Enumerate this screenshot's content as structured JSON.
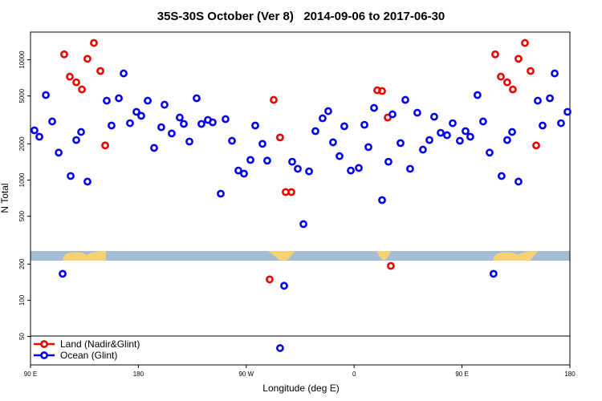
{
  "chart_data": {
    "type": "scatter",
    "title": "35S-30S October (Ver 8)   2014-09-06 to 2017-06-30",
    "x_label": "Longitude (deg E)",
    "y_label": "N Total",
    "yscale": "log",
    "xlim": [
      90,
      540
    ],
    "ylim": [
      29,
      17000
    ],
    "xticks": [
      {
        "value": 90,
        "label": "90 E"
      },
      180,
      {
        "value": 270,
        "label": "90 W"
      },
      {
        "value": 360,
        "label": "0"
      },
      {
        "value": 450,
        "label": "90 E"
      },
      {
        "value": 540,
        "label": "180"
      }
    ],
    "yticks": [
      50,
      100,
      200,
      500,
      1000,
      2000,
      5000,
      10000
    ],
    "legend": "bottomleft",
    "series": [
      {
        "name": "Land (Nadir&Glint)",
        "color": "#ee0000",
        "x": [
          118.1,
          122.8,
          128.2,
          132.9,
          137.5,
          142.9,
          148.3,
          152.3,
          289.5,
          292.9,
          298.2,
          302.9,
          307.6,
          379.3,
          383.3,
          388,
          390.6,
          477.7,
          482.4,
          487.7,
          492.4,
          497.1,
          502.5,
          507.2,
          511.9
        ],
        "values": [
          11100,
          7240,
          6500,
          5670,
          10200,
          13800,
          8070,
          1940,
          149,
          4640,
          2260,
          794,
          794,
          5580,
          5500,
          3310,
          193,
          11100,
          7240,
          6500,
          5670,
          10200,
          13800,
          8070,
          1940
        ]
      },
      {
        "name": "Ocean (Glint)",
        "color": "#0000ee",
        "x": [
          93.3,
          97.4,
          102.8,
          108.1,
          113.5,
          116.8,
          123.5,
          128.2,
          132.2,
          137.5,
          153.6,
          157.6,
          163.7,
          167.7,
          173,
          178.4,
          182.4,
          187.8,
          193.1,
          199.1,
          201.8,
          207.8,
          214.5,
          217.9,
          222.6,
          228.6,
          232.6,
          238,
          242,
          248.7,
          252.7,
          258.1,
          263.4,
          268.1,
          273.5,
          277.5,
          283.5,
          287.5,
          298.2,
          301.6,
          308.3,
          313,
          317.7,
          322.4,
          327.7,
          333.7,
          338.4,
          342.4,
          347.8,
          351.8,
          357.2,
          363.9,
          368.6,
          371.9,
          376.6,
          383.3,
          388.6,
          392,
          398.7,
          402.7,
          406.7,
          412.7,
          417.4,
          422.8,
          426.8,
          432.2,
          437.5,
          442.2,
          448.2,
          452.9,
          456.9,
          462.9,
          467.6,
          473,
          476.3,
          483,
          487.7,
          491.8,
          497.1,
          513.2,
          517.2,
          523.3,
          527.3,
          532.6,
          538
        ],
        "values": [
          2590,
          2290,
          5090,
          3070,
          1690,
          166,
          1080,
          2150,
          2510,
          970,
          4570,
          2840,
          4790,
          7700,
          2970,
          3690,
          3420,
          4570,
          1850,
          2750,
          4230,
          2440,
          3310,
          2930,
          2090,
          4790,
          2930,
          3160,
          3020,
          770,
          3210,
          2120,
          1200,
          1130,
          1470,
          2840,
          2000,
          1450,
          40,
          132,
          1420,
          1240,
          430,
          1180,
          2550,
          3260,
          3740,
          2060,
          1580,
          2800,
          1200,
          1260,
          2880,
          1880,
          3980,
          681,
          1420,
          3520,
          2030,
          4640,
          1240,
          3630,
          1790,
          2150,
          3360,
          2470,
          2360,
          2970,
          2120,
          2550,
          2290,
          5090,
          3070,
          1690,
          166,
          1080,
          2150,
          2510,
          970,
          4570,
          2840,
          4790,
          7700,
          2970,
          3690
        ]
      }
    ]
  }
}
